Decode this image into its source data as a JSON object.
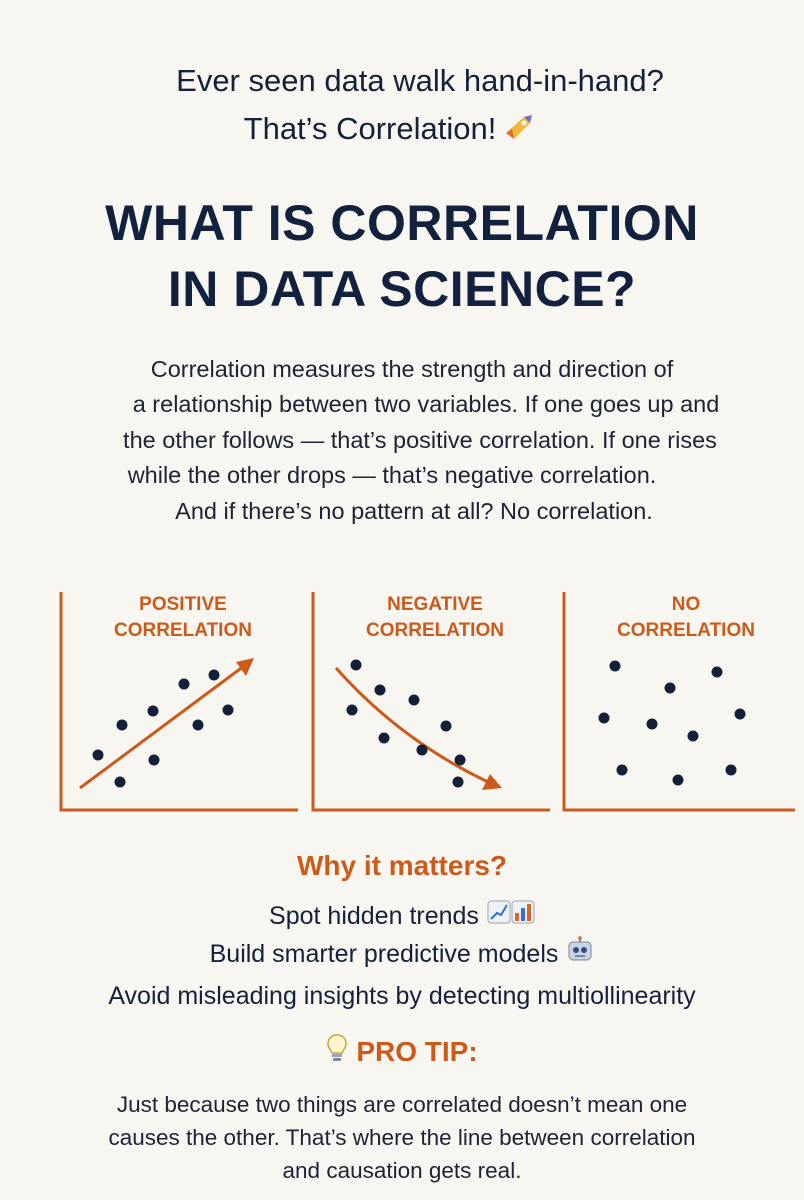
{
  "tagline": {
    "line1": "Ever seen data walk hand-in-hand?",
    "line2": "That’s Correlation!",
    "icon": "rocket-icon"
  },
  "title": {
    "line1": "WHAT IS CORRELATION",
    "line2": "IN DATA SCIENCE?"
  },
  "description": {
    "line1": "Correlation measures the strength and direction of",
    "line2": "a relationship between two variables. If one goes up and",
    "line3": "the other follows — that’s positive correlation. If one rises",
    "line4": "while the other drops — that’s negative correlation.",
    "line5": "And if there’s no pattern at all? No correlation."
  },
  "panels": [
    {
      "label_line1": "POSITIVE",
      "label_line2": "CORRELATION"
    },
    {
      "label_line1": "NEGATIVE",
      "label_line2": "CORRELATION"
    },
    {
      "label_line1": "NO",
      "label_line2": "CORRELATION"
    }
  ],
  "why": {
    "title": "Why it matters?",
    "item1": "Spot hidden trends",
    "item2": "Build smarter predictive models",
    "item3": "Avoid misleading insights by detecting multiollinearity"
  },
  "pro_tip": {
    "title": "PRO TIP:",
    "line1": "Just because two things are correlated doesn’t mean one",
    "line2": "causes the other. That’s where the line between correlation",
    "line3": "and causation gets real."
  },
  "colors": {
    "accent": "#cc5a1a",
    "text": "#14213a",
    "background": "#f8f6f1",
    "dot": "#13203a"
  }
}
